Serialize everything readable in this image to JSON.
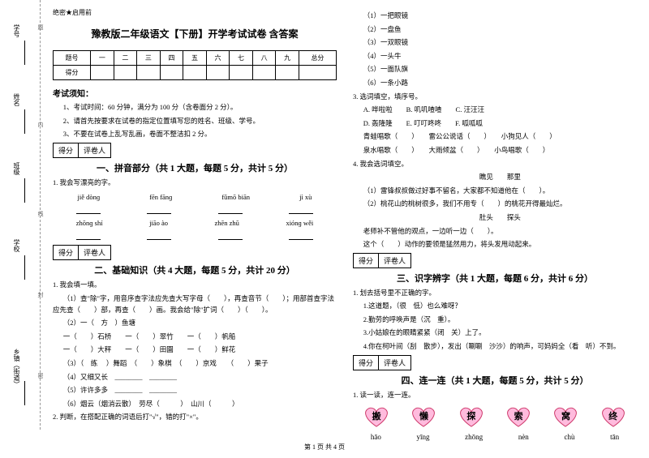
{
  "sidebar": {
    "items": [
      "学号",
      "姓名",
      "班级",
      "学校",
      "乡镇（街道）"
    ],
    "dots": [
      "题",
      "内",
      "线",
      "封",
      "密"
    ]
  },
  "header": {
    "secret": "绝密★启用前",
    "title": "豫教版二年级语文【下册】开学考试试卷 含答案"
  },
  "scoreTable": {
    "r1": [
      "题号",
      "一",
      "二",
      "三",
      "四",
      "五",
      "六",
      "七",
      "八",
      "九",
      "总分"
    ],
    "r2": [
      "得分",
      "",
      "",
      "",
      "",
      "",
      "",
      "",
      "",
      "",
      ""
    ]
  },
  "notice": {
    "h": "考试须知：",
    "l1": "1、考试时间：60 分钟，满分为 100 分（含卷面分 2 分）。",
    "l2": "2、请首先按要求在试卷的指定位置填写您的姓名、班级、学号。",
    "l3": "3、不要在试卷上乱写乱画，卷面不整洁扣 2 分。"
  },
  "sb": {
    "a": "得分",
    "b": "评卷人"
  },
  "s1": {
    "title": "一、拼音部分（共 1 大题，每题 5 分，共计 5 分）",
    "q1": "1. 我会写漂亮的字。",
    "row1": [
      "jiě dònɡ",
      "fēn fānɡ",
      "fǔmō biān",
      "jì xù"
    ],
    "row2": [
      "zhōnɡ shí",
      "jiāo ào",
      "zhēn zhū",
      "xiónɡ wěi"
    ]
  },
  "s2": {
    "title": "二、基础知识（共 4 大题，每题 5 分，共计 20 分）",
    "q1": "1. 我会填一填。",
    "q1a": "（1）查\"除\"字，用音序查字法应先查大写字母（　　），再查音节（　　）；用部首查字法应先查（　　）部，再查（　　）画。我会给\"除\"扩词（　　）（　　）。",
    "q1b1": "（2）一（　方　）鱼塘",
    "q1b2": "一（　　）石桥　　一（　　）翠竹　　一（　　）帆船",
    "q1b3": "一（　　）大秤　　一（　　）田園　　一（　　）鲜花",
    "q1b4": "（3）（　练 　）舞蹈　（　　）象棋　（　　）京戏　　（　　）果子",
    "q1b5": "（4）又细又长　________　________",
    "q1b6": "（5）许许多多　________　________",
    "q1b7": "（6）烟云（烟消云散）　劳尽（　　　）　山川（　　　）",
    "q2": "2. 判断，在搭配正确的词语后打\"√\"，错的打\"×\"。"
  },
  "right": {
    "items": [
      "（1）一把眼镜",
      "（2）一盘鱼",
      "（3）一双眼镜",
      "（4）一头牛",
      "（5）一面队旗",
      "（6）一条小路"
    ],
    "q3": "3. 选词填空，填序号。",
    "q3a": "A. 哗啦啦　　B. 叽叽喳喳　　C. 汪汪汪",
    "q3b": "D. 轰隆隆　　E. 叮叮咚咚　　F. 呱呱呱",
    "q3l1": "青蛙唱歌（　　）　　雷公公说话（　　）　　小狗见人（　　）",
    "q3l2": "泉水唱歌（　　）　　大雨倾盆（　　）　　小鸟唱歌（　　）",
    "q4": "4. 我会选词填空。",
    "q4w": "瞧见　　那里",
    "q4a": "（1）雷锋叔叔做过好事不留名，大家都不知道他在（　　）。",
    "q4b": "（2）桃花山的桃树很多，我们不用专（　　）的桃花开得最灿烂。",
    "q4w2": "肚头　　探头",
    "q4c": "老师补不管他的观点，一边听一边（　　）。",
    "q4d": "这个（　　）动作的要领是猛然用力，将头发甩动起来。"
  },
  "s3": {
    "title": "三、识字辨字（共 1 大题，每题 6 分，共计 6 分）",
    "q1": "1. 划去括号里不正确的字。",
    "q1a": "1.这道题，（很　低）也么难呀？",
    "q1b": "2.勤劳的呼唤声是（沉　重）。",
    "q1c": "3.小姑娘在的眼睛紧紧（闭　关）上了。",
    "q1d": "4.你在柯叶间（刮　散步），发出（唰唰　沙沙）的响声，可妈妈全（看　听）不到。"
  },
  "s4": {
    "title": "四、连一连（共 1 大题，每题 5 分，共计 5 分）",
    "q1": "1. 读一读，连一连。",
    "hearts": [
      "搬",
      "懒",
      "探",
      "索",
      "窝",
      "终"
    ],
    "pinyins": [
      "hāo",
      "yīng",
      "zhōng",
      "nèn",
      "chù",
      "tān"
    ]
  },
  "footer": "第 1 页  共 4 页"
}
